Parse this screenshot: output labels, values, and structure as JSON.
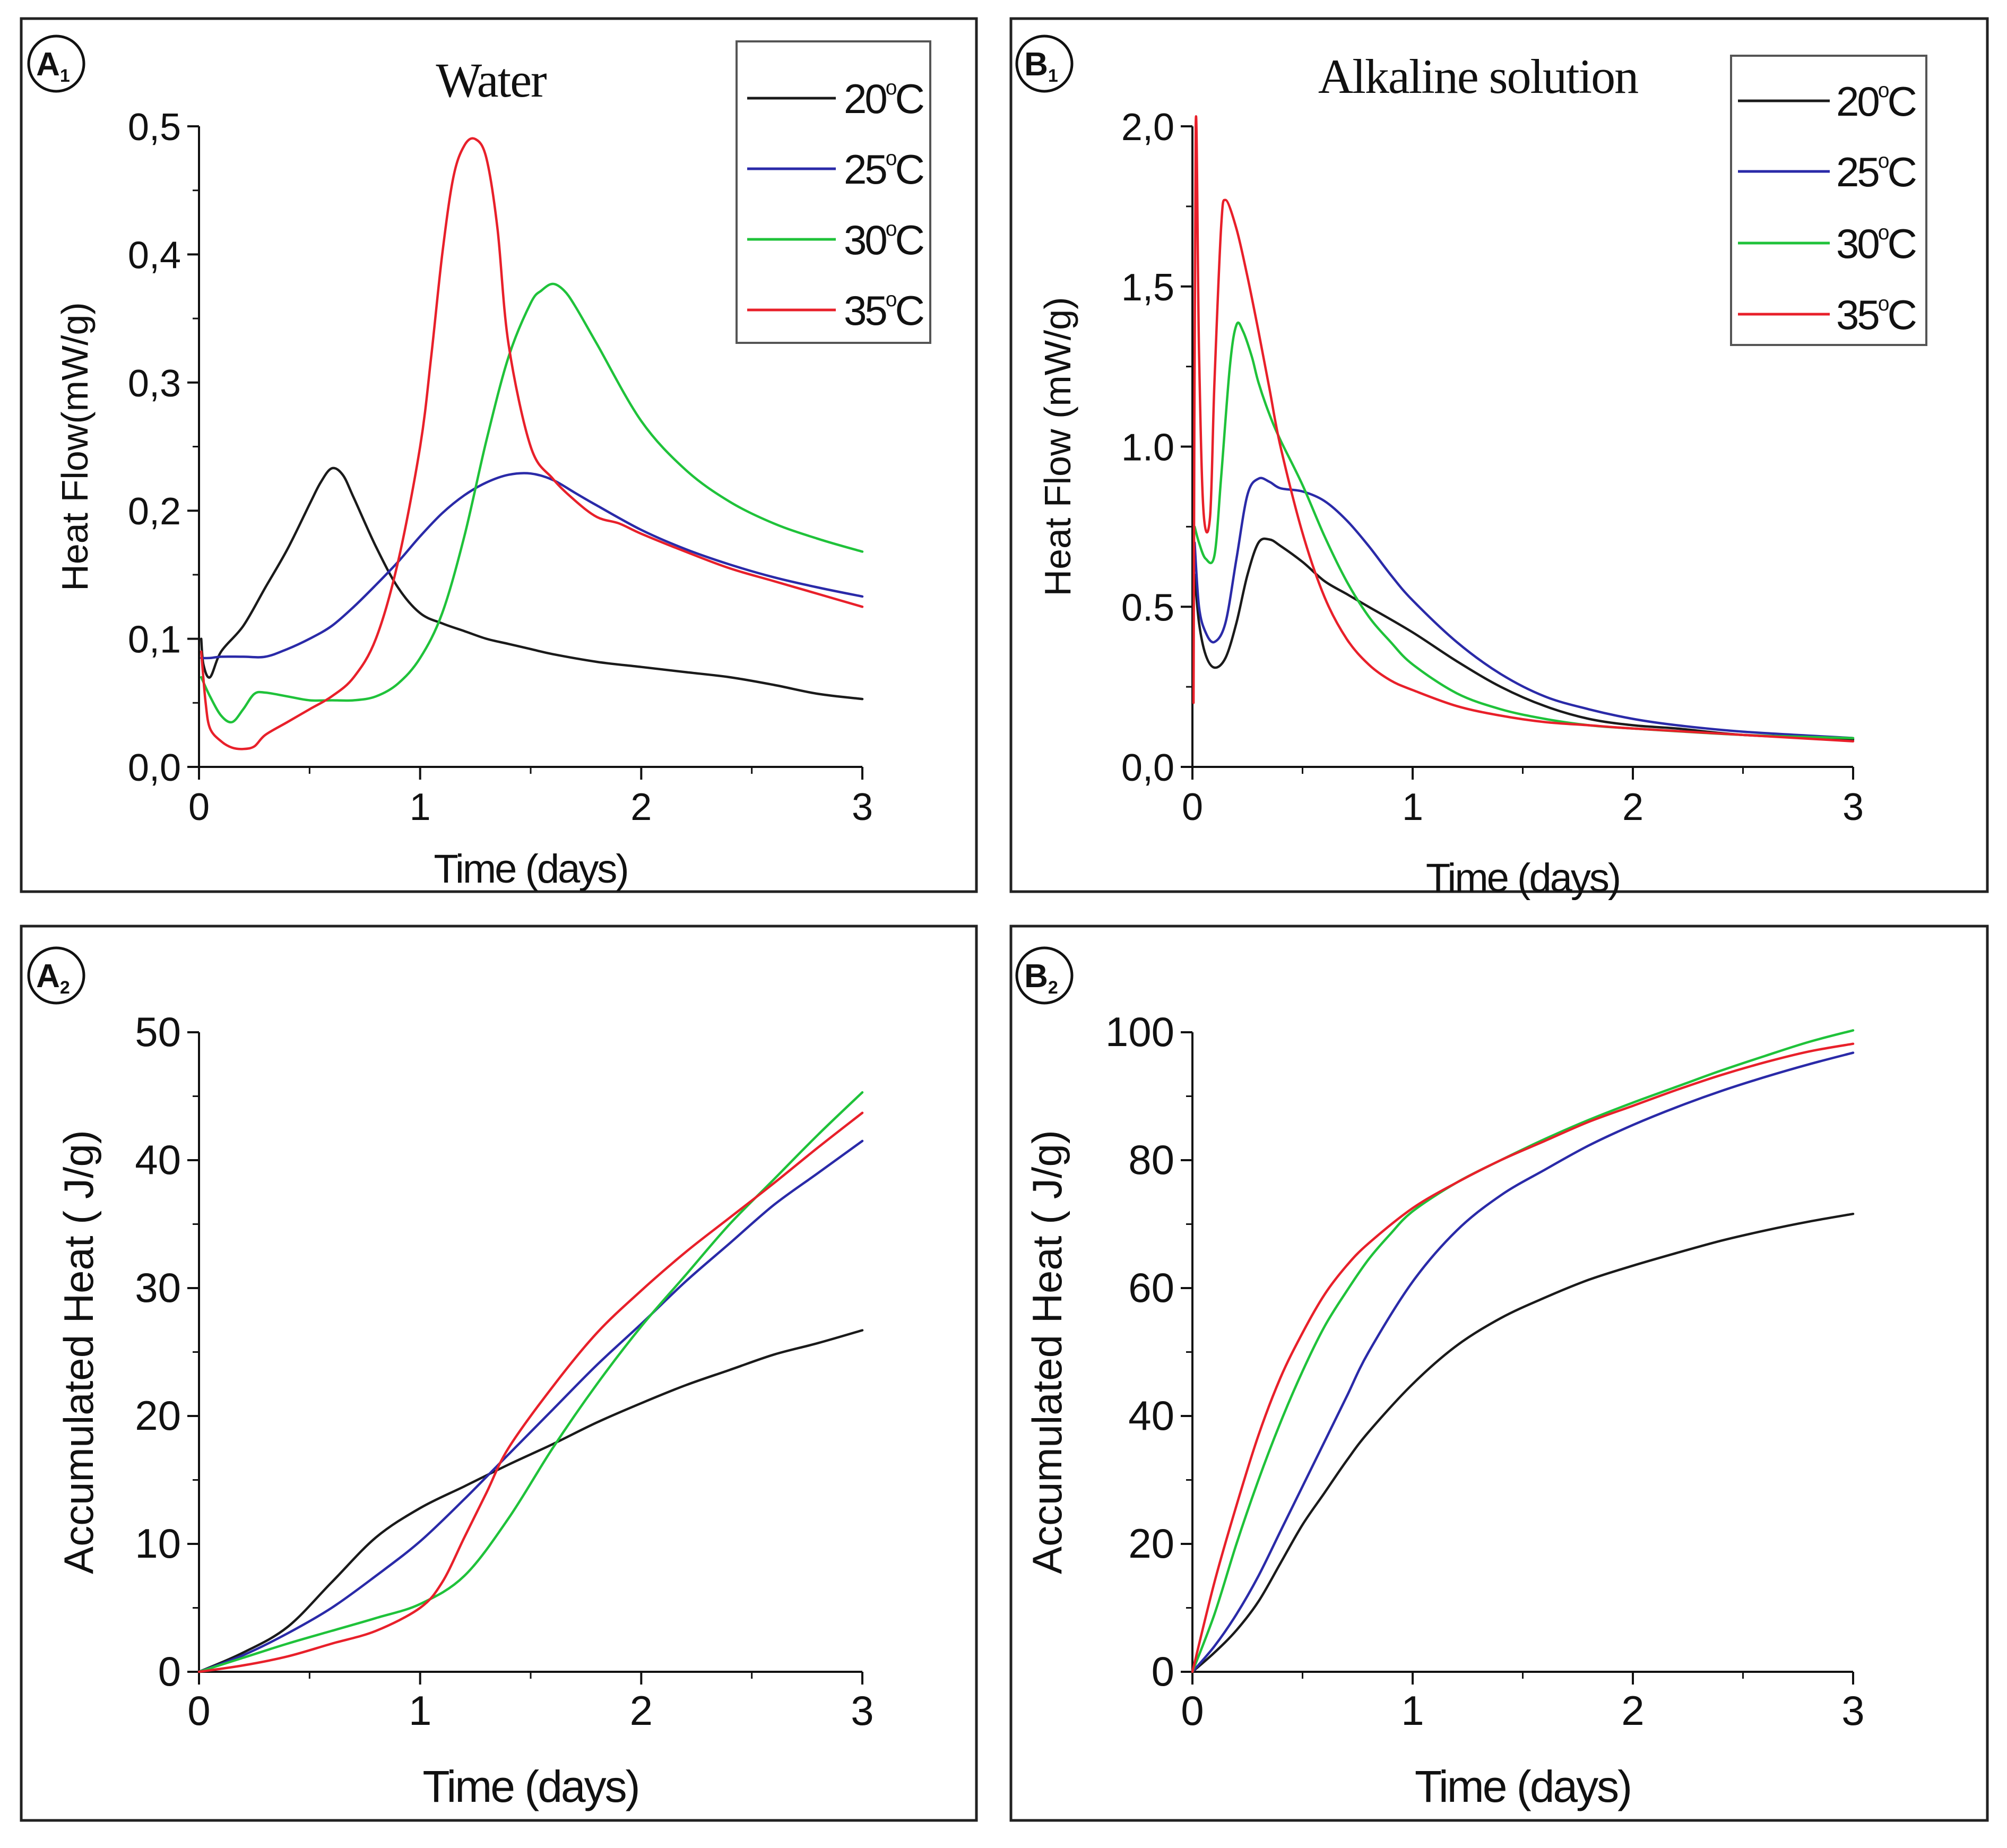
{
  "colors": {
    "black": "#1a1a1a",
    "blue": "#2a2aa8",
    "green": "#1fc23a",
    "red": "#e8202a",
    "frame": "#222222"
  },
  "chart_data": [
    {
      "id": "A1",
      "badge": {
        "letter": "A",
        "sub": "1"
      },
      "type": "line",
      "title": "Water",
      "xlabel": "Time (days)",
      "ylabel": "Heat Flow(mW/g)",
      "xlim": [
        0,
        3
      ],
      "ylim": [
        0,
        0.5
      ],
      "xticks": [
        0,
        1,
        2,
        3
      ],
      "xtick_labels": [
        "0",
        "1",
        "2",
        "3"
      ],
      "yticks": [
        0,
        0.1,
        0.2,
        0.3,
        0.4,
        0.5
      ],
      "ytick_labels": [
        "0,0",
        "0,1",
        "0,2",
        "0,3",
        "0,4",
        "0,5"
      ],
      "legend": "top-right",
      "series": [
        {
          "name": "20°C",
          "label_num": "20",
          "label_deg": "o",
          "label_unit": "C",
          "color": "#1a1a1a",
          "x": [
            0.01,
            0.02,
            0.05,
            0.1,
            0.2,
            0.3,
            0.4,
            0.5,
            0.55,
            0.6,
            0.65,
            0.7,
            0.8,
            0.9,
            1.0,
            1.1,
            1.2,
            1.3,
            1.4,
            1.5,
            1.6,
            1.8,
            2.0,
            2.2,
            2.4,
            2.6,
            2.8,
            3.0
          ],
          "y": [
            0.1,
            0.08,
            0.07,
            0.09,
            0.11,
            0.14,
            0.17,
            0.205,
            0.222,
            0.233,
            0.228,
            0.21,
            0.172,
            0.14,
            0.12,
            0.112,
            0.106,
            0.1,
            0.096,
            0.092,
            0.088,
            0.082,
            0.078,
            0.074,
            0.07,
            0.064,
            0.057,
            0.053
          ]
        },
        {
          "name": "25°C",
          "label_num": "25",
          "label_deg": "o",
          "label_unit": "C",
          "color": "#2a2aa8",
          "x": [
            0.01,
            0.05,
            0.1,
            0.2,
            0.3,
            0.4,
            0.5,
            0.6,
            0.7,
            0.8,
            0.9,
            1.0,
            1.1,
            1.2,
            1.3,
            1.4,
            1.5,
            1.6,
            1.7,
            1.8,
            2.0,
            2.2,
            2.4,
            2.6,
            2.8,
            3.0
          ],
          "y": [
            0.085,
            0.085,
            0.086,
            0.086,
            0.086,
            0.092,
            0.1,
            0.11,
            0.125,
            0.142,
            0.16,
            0.18,
            0.198,
            0.212,
            0.222,
            0.228,
            0.229,
            0.224,
            0.214,
            0.204,
            0.185,
            0.17,
            0.158,
            0.148,
            0.14,
            0.133
          ]
        },
        {
          "name": "30°C",
          "label_num": "30",
          "label_deg": "o",
          "label_unit": "C",
          "color": "#1fc23a",
          "x": [
            0.01,
            0.05,
            0.1,
            0.15,
            0.2,
            0.25,
            0.3,
            0.4,
            0.5,
            0.6,
            0.7,
            0.8,
            0.9,
            1.0,
            1.1,
            1.2,
            1.3,
            1.4,
            1.5,
            1.55,
            1.6,
            1.65,
            1.7,
            1.8,
            2.0,
            2.2,
            2.4,
            2.6,
            2.8,
            3.0
          ],
          "y": [
            0.07,
            0.055,
            0.04,
            0.035,
            0.045,
            0.057,
            0.058,
            0.055,
            0.052,
            0.052,
            0.052,
            0.055,
            0.065,
            0.085,
            0.12,
            0.18,
            0.255,
            0.32,
            0.362,
            0.372,
            0.377,
            0.372,
            0.36,
            0.33,
            0.27,
            0.232,
            0.207,
            0.19,
            0.178,
            0.168
          ]
        },
        {
          "name": "35°C",
          "label_num": "35",
          "label_deg": "o",
          "label_unit": "C",
          "color": "#e8202a",
          "x": [
            0.01,
            0.03,
            0.05,
            0.1,
            0.15,
            0.2,
            0.25,
            0.3,
            0.4,
            0.5,
            0.6,
            0.7,
            0.8,
            0.9,
            1.0,
            1.05,
            1.1,
            1.15,
            1.2,
            1.25,
            1.3,
            1.35,
            1.4,
            1.5,
            1.6,
            1.7,
            1.8,
            1.9,
            2.0,
            2.2,
            2.4,
            2.6,
            2.8,
            3.0
          ],
          "y": [
            0.09,
            0.05,
            0.03,
            0.02,
            0.015,
            0.014,
            0.016,
            0.025,
            0.035,
            0.045,
            0.055,
            0.07,
            0.1,
            0.16,
            0.25,
            0.32,
            0.4,
            0.46,
            0.485,
            0.49,
            0.475,
            0.42,
            0.33,
            0.25,
            0.225,
            0.208,
            0.195,
            0.19,
            0.182,
            0.168,
            0.155,
            0.145,
            0.135,
            0.125
          ]
        }
      ]
    },
    {
      "id": "B1",
      "badge": {
        "letter": "B",
        "sub": "1"
      },
      "type": "line",
      "title": "Alkaline solution",
      "xlabel": "Time (days)",
      "ylabel": "Heat Flow (mW/g)",
      "xlim": [
        0,
        3
      ],
      "ylim": [
        0,
        2.0
      ],
      "xticks": [
        0,
        1,
        2,
        3
      ],
      "xtick_labels": [
        "0",
        "1",
        "2",
        "3"
      ],
      "yticks": [
        0,
        0.5,
        1.0,
        1.5,
        2.0
      ],
      "ytick_labels": [
        "0,0",
        "0.5",
        "1.0",
        "1,5",
        "2,0"
      ],
      "legend": "top-right",
      "series": [
        {
          "name": "20°C",
          "label_num": "20",
          "label_deg": "o",
          "label_unit": "C",
          "color": "#1a1a1a",
          "x": [
            0.01,
            0.03,
            0.06,
            0.1,
            0.15,
            0.2,
            0.25,
            0.3,
            0.35,
            0.4,
            0.5,
            0.6,
            0.7,
            0.8,
            1.0,
            1.2,
            1.4,
            1.6,
            1.8,
            2.0,
            2.2,
            2.5,
            3.0
          ],
          "y": [
            0.6,
            0.45,
            0.35,
            0.31,
            0.34,
            0.45,
            0.6,
            0.7,
            0.71,
            0.69,
            0.64,
            0.58,
            0.54,
            0.5,
            0.42,
            0.33,
            0.25,
            0.19,
            0.15,
            0.13,
            0.12,
            0.1,
            0.085
          ]
        },
        {
          "name": "25°C",
          "label_num": "25",
          "label_deg": "o",
          "label_unit": "C",
          "color": "#2a2aa8",
          "x": [
            0.01,
            0.03,
            0.06,
            0.1,
            0.15,
            0.2,
            0.25,
            0.3,
            0.35,
            0.4,
            0.5,
            0.6,
            0.7,
            0.8,
            0.9,
            1.0,
            1.2,
            1.4,
            1.6,
            1.8,
            2.0,
            2.2,
            2.5,
            3.0
          ],
          "y": [
            0.7,
            0.5,
            0.42,
            0.39,
            0.45,
            0.65,
            0.85,
            0.9,
            0.89,
            0.87,
            0.86,
            0.83,
            0.77,
            0.69,
            0.6,
            0.52,
            0.39,
            0.29,
            0.22,
            0.18,
            0.15,
            0.13,
            0.11,
            0.09
          ]
        },
        {
          "name": "30°C",
          "label_num": "30",
          "label_deg": "o",
          "label_unit": "C",
          "color": "#1fc23a",
          "x": [
            0.01,
            0.03,
            0.06,
            0.1,
            0.13,
            0.17,
            0.2,
            0.23,
            0.27,
            0.3,
            0.35,
            0.4,
            0.5,
            0.6,
            0.7,
            0.8,
            0.9,
            1.0,
            1.2,
            1.4,
            1.6,
            1.8,
            2.0,
            2.5,
            3.0
          ],
          "y": [
            0.75,
            0.7,
            0.65,
            0.66,
            0.9,
            1.25,
            1.38,
            1.36,
            1.28,
            1.2,
            1.1,
            1.02,
            0.88,
            0.72,
            0.58,
            0.47,
            0.39,
            0.32,
            0.23,
            0.18,
            0.15,
            0.13,
            0.12,
            0.1,
            0.09
          ]
        },
        {
          "name": "35°C",
          "label_num": "35",
          "label_deg": "o",
          "label_unit": "C",
          "color": "#e8202a",
          "x": [
            0.005,
            0.015,
            0.03,
            0.05,
            0.08,
            0.1,
            0.13,
            0.15,
            0.2,
            0.25,
            0.3,
            0.35,
            0.4,
            0.5,
            0.6,
            0.7,
            0.8,
            0.9,
            1.0,
            1.2,
            1.4,
            1.6,
            1.8,
            2.0,
            2.5,
            3.0
          ],
          "y": [
            0.2,
            2.0,
            1.3,
            0.8,
            0.78,
            1.2,
            1.68,
            1.77,
            1.68,
            1.53,
            1.36,
            1.18,
            1.0,
            0.73,
            0.53,
            0.4,
            0.32,
            0.27,
            0.24,
            0.19,
            0.16,
            0.14,
            0.13,
            0.12,
            0.1,
            0.08
          ]
        }
      ]
    },
    {
      "id": "A2",
      "badge": {
        "letter": "A",
        "sub": "2"
      },
      "type": "line",
      "title": "",
      "xlabel": "Time (days)",
      "ylabel": "Accumulated Heat ( J/g)",
      "xlim": [
        0,
        3
      ],
      "ylim": [
        0,
        50
      ],
      "xticks": [
        0,
        1,
        2,
        3
      ],
      "xtick_labels": [
        "0",
        "1",
        "2",
        "3"
      ],
      "yticks": [
        0,
        10,
        20,
        30,
        40,
        50
      ],
      "ytick_labels": [
        "0",
        "10",
        "20",
        "30",
        "40",
        "50"
      ],
      "legend": "none",
      "series": [
        {
          "name": "20°C",
          "color": "#1a1a1a",
          "x": [
            0,
            0.2,
            0.4,
            0.6,
            0.8,
            1.0,
            1.2,
            1.4,
            1.6,
            1.8,
            2.0,
            2.2,
            2.4,
            2.6,
            2.8,
            3.0
          ],
          "y": [
            0,
            1.5,
            3.5,
            7,
            10.5,
            12.8,
            14.5,
            16.2,
            17.8,
            19.5,
            21,
            22.4,
            23.6,
            24.8,
            25.7,
            26.7
          ]
        },
        {
          "name": "25°C",
          "color": "#2a2aa8",
          "x": [
            0,
            0.2,
            0.4,
            0.6,
            0.8,
            1.0,
            1.2,
            1.4,
            1.6,
            1.8,
            2.0,
            2.2,
            2.4,
            2.6,
            2.8,
            3.0
          ],
          "y": [
            0,
            1.3,
            3,
            5,
            7.5,
            10.2,
            13.5,
            17,
            20.5,
            24,
            27.2,
            30.5,
            33.5,
            36.5,
            39,
            41.5
          ]
        },
        {
          "name": "30°C",
          "color": "#1fc23a",
          "x": [
            0,
            0.2,
            0.4,
            0.6,
            0.8,
            1.0,
            1.2,
            1.4,
            1.6,
            1.8,
            2.0,
            2.2,
            2.4,
            2.6,
            2.8,
            3.0
          ],
          "y": [
            0,
            1.1,
            2.2,
            3.2,
            4.2,
            5.3,
            7.5,
            12,
            17.5,
            22.5,
            27,
            31,
            35,
            38.5,
            42,
            45.3
          ]
        },
        {
          "name": "35°C",
          "color": "#e8202a",
          "x": [
            0,
            0.2,
            0.4,
            0.6,
            0.8,
            1.0,
            1.1,
            1.2,
            1.3,
            1.4,
            1.6,
            1.8,
            2.0,
            2.2,
            2.4,
            2.6,
            2.8,
            3.0
          ],
          "y": [
            0,
            0.5,
            1.2,
            2.2,
            3.2,
            5,
            7,
            10.5,
            14,
            17.5,
            22.3,
            26.5,
            29.8,
            32.8,
            35.5,
            38.2,
            41,
            43.7
          ]
        }
      ]
    },
    {
      "id": "B2",
      "badge": {
        "letter": "B",
        "sub": "2"
      },
      "type": "line",
      "title": "",
      "xlabel": "Time (days)",
      "ylabel": "Accumulated Heat ( J/g)",
      "xlim": [
        0,
        3
      ],
      "ylim": [
        0,
        100
      ],
      "xticks": [
        0,
        1,
        2,
        3
      ],
      "xtick_labels": [
        "0",
        "1",
        "2",
        "3"
      ],
      "yticks": [
        0,
        20,
        40,
        60,
        80,
        100
      ],
      "ytick_labels": [
        "0",
        "20",
        "40",
        "60",
        "80",
        "100"
      ],
      "legend": "none",
      "series": [
        {
          "name": "20°C",
          "color": "#1a1a1a",
          "x": [
            0,
            0.1,
            0.2,
            0.3,
            0.4,
            0.5,
            0.6,
            0.7,
            0.8,
            1.0,
            1.2,
            1.4,
            1.6,
            1.8,
            2.0,
            2.2,
            2.4,
            2.6,
            2.8,
            3.0
          ],
          "y": [
            0,
            3,
            6.5,
            11,
            17,
            23,
            28,
            33,
            37.5,
            45,
            51,
            55.3,
            58.5,
            61.3,
            63.5,
            65.5,
            67.4,
            69,
            70.4,
            71.6
          ]
        },
        {
          "name": "25°C",
          "color": "#2a2aa8",
          "x": [
            0,
            0.1,
            0.2,
            0.3,
            0.4,
            0.5,
            0.6,
            0.7,
            0.8,
            1.0,
            1.2,
            1.4,
            1.6,
            1.8,
            2.0,
            2.2,
            2.4,
            2.6,
            2.8,
            3.0
          ],
          "y": [
            0,
            4,
            9,
            15,
            22,
            29,
            36,
            43,
            50,
            61,
            69,
            74.5,
            78.5,
            82.3,
            85.5,
            88.3,
            90.8,
            93,
            95,
            96.8
          ]
        },
        {
          "name": "30°C",
          "color": "#1fc23a",
          "x": [
            0,
            0.1,
            0.2,
            0.3,
            0.4,
            0.5,
            0.6,
            0.7,
            0.8,
            0.9,
            1.0,
            1.2,
            1.4,
            1.6,
            1.8,
            2.0,
            2.2,
            2.4,
            2.6,
            2.8,
            3.0
          ],
          "y": [
            0,
            9,
            20,
            30,
            39,
            47,
            54,
            59.5,
            64.5,
            68.5,
            72,
            76.5,
            80,
            83.3,
            86.3,
            89,
            91.5,
            94,
            96.3,
            98.5,
            100.3
          ]
        },
        {
          "name": "35°C",
          "color": "#e8202a",
          "x": [
            0,
            0.1,
            0.2,
            0.3,
            0.4,
            0.5,
            0.6,
            0.7,
            0.8,
            1.0,
            1.2,
            1.4,
            1.6,
            1.8,
            2.0,
            2.2,
            2.4,
            2.6,
            2.8,
            3.0
          ],
          "y": [
            0,
            14,
            26,
            37,
            46,
            53,
            59,
            63.5,
            67,
            72.5,
            76.5,
            80,
            83,
            86,
            88.5,
            91,
            93.3,
            95.3,
            97,
            98.2
          ]
        }
      ]
    }
  ]
}
